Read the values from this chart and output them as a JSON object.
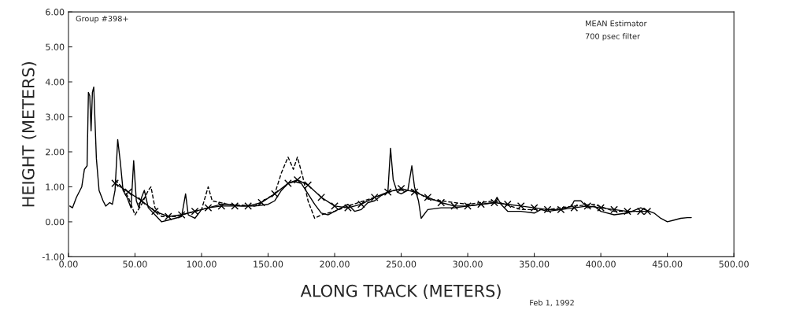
{
  "chart_data": {
    "type": "line",
    "xlabel": "ALONG TRACK (METERS)",
    "ylabel": "HEIGHT (METERS)",
    "xlim": [
      0,
      500
    ],
    "ylim": [
      -1,
      6
    ],
    "xticks": [
      {
        "value": 0,
        "label": "0.00"
      },
      {
        "value": 50,
        "label": "50.00"
      },
      {
        "value": 100,
        "label": "100.00"
      },
      {
        "value": 150,
        "label": "150.00"
      },
      {
        "value": 200,
        "label": "200.00"
      },
      {
        "value": 250,
        "label": "250.00"
      },
      {
        "value": 300,
        "label": "300.00"
      },
      {
        "value": 350,
        "label": "350.00"
      },
      {
        "value": 400,
        "label": "400.00"
      },
      {
        "value": 450,
        "label": "450.00"
      },
      {
        "value": 500,
        "label": "500.00"
      }
    ],
    "yticks": [
      {
        "value": -1,
        "label": "-1.00"
      },
      {
        "value": 0,
        "label": "0.00"
      },
      {
        "value": 1,
        "label": "1.00"
      },
      {
        "value": 2,
        "label": "2.00"
      },
      {
        "value": 3,
        "label": "3.00"
      },
      {
        "value": 4,
        "label": "4.00"
      },
      {
        "value": 5,
        "label": "5.00"
      },
      {
        "value": 6,
        "label": "6.00"
      }
    ],
    "grid": false,
    "annotations": [
      "Group #398+",
      "MEAN Estimator",
      "700 psec filter",
      "Feb 1, 1992"
    ],
    "series": [
      {
        "color": "#000000",
        "line_style": "solid",
        "marker": "none",
        "x": [
          1,
          3,
          6,
          10,
          12,
          14,
          15,
          16,
          17,
          18,
          19,
          21,
          23,
          26,
          28,
          31,
          33,
          35,
          37,
          39,
          41,
          44,
          47,
          49,
          51,
          53,
          55,
          57,
          60,
          65,
          70,
          75,
          80,
          85,
          88,
          90,
          95,
          100,
          105,
          110,
          115,
          120,
          130,
          140,
          150,
          155,
          160,
          165,
          170,
          175,
          180,
          185,
          190,
          195,
          200,
          205,
          210,
          215,
          220,
          225,
          230,
          235,
          240,
          242,
          244,
          247,
          250,
          255,
          258,
          260,
          263,
          265,
          270,
          280,
          290,
          300,
          310,
          320,
          322,
          325,
          330,
          340,
          350,
          355,
          360,
          370,
          378,
          380,
          385,
          390,
          395,
          400,
          410,
          420,
          430,
          433,
          440,
          445,
          450,
          455,
          460,
          465,
          468
        ],
        "values": [
          0.45,
          0.4,
          0.7,
          1.0,
          1.5,
          1.6,
          3.7,
          3.6,
          2.6,
          3.7,
          3.85,
          1.8,
          0.9,
          0.6,
          0.45,
          0.55,
          0.5,
          0.9,
          2.35,
          1.7,
          0.9,
          0.7,
          0.4,
          1.75,
          0.6,
          0.4,
          0.7,
          0.9,
          0.4,
          0.2,
          0.0,
          0.05,
          0.1,
          0.15,
          0.8,
          0.2,
          0.1,
          0.35,
          0.4,
          0.45,
          0.5,
          0.5,
          0.45,
          0.45,
          0.5,
          0.6,
          0.9,
          1.1,
          1.15,
          1.1,
          0.8,
          0.5,
          0.25,
          0.2,
          0.3,
          0.4,
          0.5,
          0.3,
          0.35,
          0.55,
          0.6,
          0.75,
          0.85,
          2.1,
          1.2,
          0.85,
          0.8,
          0.9,
          1.6,
          1.0,
          0.6,
          0.1,
          0.35,
          0.4,
          0.4,
          0.45,
          0.5,
          0.55,
          0.7,
          0.5,
          0.3,
          0.3,
          0.25,
          0.35,
          0.3,
          0.35,
          0.45,
          0.6,
          0.6,
          0.4,
          0.45,
          0.3,
          0.2,
          0.25,
          0.4,
          0.35,
          0.25,
          0.1,
          0.0,
          0.05,
          0.1,
          0.12,
          0.12
        ]
      },
      {
        "color": "#000000",
        "line_style": "dashed",
        "marker": "none",
        "x": [
          35,
          40,
          45,
          50,
          55,
          60,
          62,
          65,
          70,
          80,
          90,
          100,
          105,
          108,
          120,
          140,
          155,
          160,
          165,
          169,
          172,
          176,
          180,
          185,
          190,
          200,
          210,
          230,
          245,
          260,
          270,
          300,
          320,
          340,
          360,
          380,
          395,
          410,
          430
        ],
        "values": [
          1.2,
          1.0,
          0.7,
          0.2,
          0.5,
          0.9,
          1.0,
          0.4,
          0.15,
          0.15,
          0.25,
          0.35,
          1.0,
          0.6,
          0.5,
          0.45,
          0.8,
          1.4,
          1.85,
          1.5,
          1.85,
          1.3,
          0.6,
          0.1,
          0.2,
          0.3,
          0.45,
          0.7,
          0.9,
          0.9,
          0.65,
          0.5,
          0.6,
          0.35,
          0.35,
          0.45,
          0.5,
          0.3,
          0.3
        ]
      },
      {
        "color": "#000000",
        "line_style": "solid",
        "marker": "cross",
        "x": [
          35,
          45,
          55,
          65,
          75,
          85,
          95,
          105,
          115,
          125,
          135,
          145,
          155,
          165,
          172,
          180,
          190,
          200,
          210,
          220,
          230,
          240,
          250,
          260,
          270,
          280,
          290,
          300,
          310,
          320,
          330,
          340,
          350,
          360,
          370,
          380,
          390,
          400,
          410,
          420,
          430,
          435
        ],
        "values": [
          1.1,
          0.85,
          0.6,
          0.3,
          0.15,
          0.2,
          0.3,
          0.4,
          0.45,
          0.45,
          0.45,
          0.55,
          0.8,
          1.1,
          1.2,
          1.05,
          0.7,
          0.45,
          0.4,
          0.5,
          0.7,
          0.85,
          0.95,
          0.85,
          0.7,
          0.55,
          0.45,
          0.45,
          0.5,
          0.55,
          0.5,
          0.45,
          0.4,
          0.35,
          0.35,
          0.4,
          0.45,
          0.4,
          0.35,
          0.3,
          0.3,
          0.3
        ]
      }
    ]
  }
}
